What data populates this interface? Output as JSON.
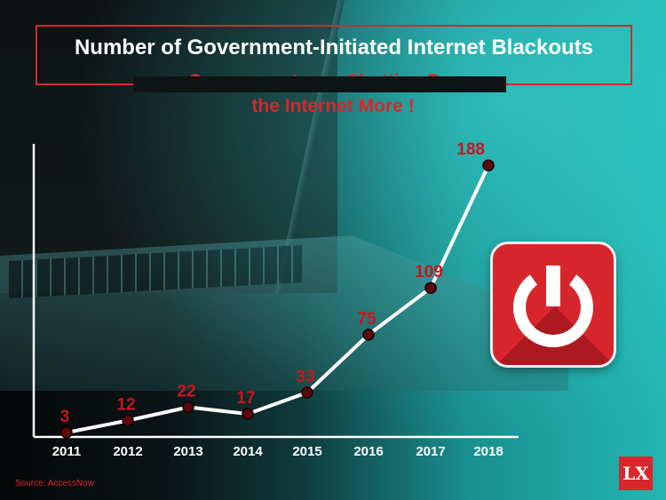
{
  "title": "Number of Government-Initiated Internet Blackouts",
  "subtitle_line1": "Governments are Shutting Down",
  "subtitle_line2": "the Internet More !",
  "source": "Source: AccessNow",
  "logo_text": "LX",
  "icons": [
    "power-icon"
  ],
  "colors": {
    "accent": "#d8272d",
    "line": "#ffffff",
    "point": "#5a0a0c",
    "label": "#c9151d"
  },
  "chart_data": {
    "type": "line",
    "title": "Number of Government-Initiated Internet Blackouts",
    "subtitle": "Governments are Shutting Down the Internet More !",
    "xlabel": "",
    "ylabel": "",
    "categories": [
      "2011",
      "2012",
      "2013",
      "2014",
      "2015",
      "2016",
      "2017",
      "2018"
    ],
    "values": [
      3,
      12,
      22,
      17,
      33,
      75,
      109,
      188
    ],
    "ylim": [
      0,
      200
    ],
    "grid": false,
    "legend": "none"
  }
}
